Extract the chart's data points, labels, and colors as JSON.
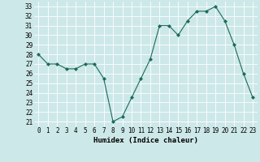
{
  "x": [
    0,
    1,
    2,
    3,
    4,
    5,
    6,
    7,
    8,
    9,
    10,
    11,
    12,
    13,
    14,
    15,
    16,
    17,
    18,
    19,
    20,
    21,
    22,
    23
  ],
  "y": [
    28,
    27,
    27,
    26.5,
    26.5,
    27,
    27,
    25.5,
    21,
    21.5,
    23.5,
    25.5,
    27.5,
    31,
    31,
    30,
    31.5,
    32.5,
    32.5,
    33,
    31.5,
    29,
    26,
    23.5
  ],
  "line_color": "#1a6b5a",
  "marker": "D",
  "marker_size": 2,
  "bg_color": "#cde8e8",
  "grid_color": "#ffffff",
  "xlabel": "Humidex (Indice chaleur)",
  "xlim": [
    -0.5,
    23.5
  ],
  "ylim": [
    20.5,
    33.5
  ],
  "yticks": [
    21,
    22,
    23,
    24,
    25,
    26,
    27,
    28,
    29,
    30,
    31,
    32,
    33
  ],
  "xticks": [
    0,
    1,
    2,
    3,
    4,
    5,
    6,
    7,
    8,
    9,
    10,
    11,
    12,
    13,
    14,
    15,
    16,
    17,
    18,
    19,
    20,
    21,
    22,
    23
  ],
  "label_fontsize": 6.5,
  "tick_fontsize": 5.5
}
